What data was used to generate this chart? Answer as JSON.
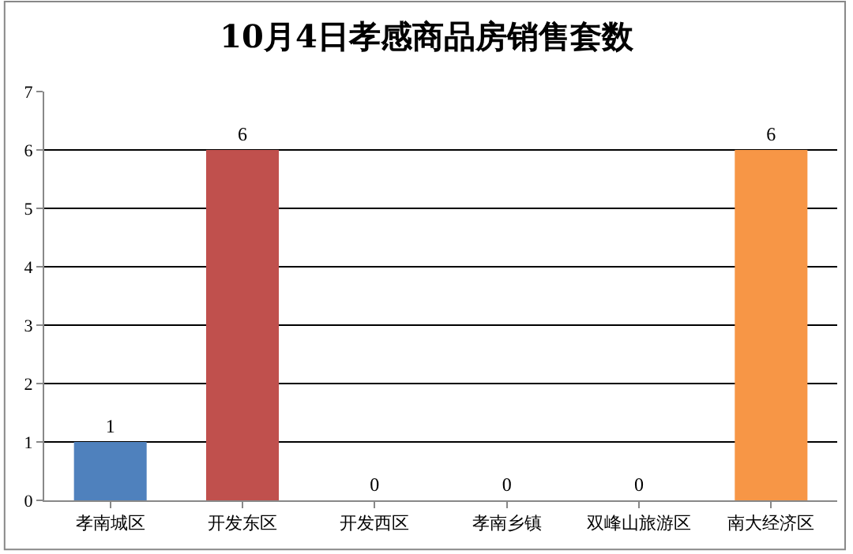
{
  "chart_data": {
    "type": "bar",
    "title": "10月4日孝感商品房销售套数",
    "categories": [
      "孝南城区",
      "开发东区",
      "开发西区",
      "孝南乡镇",
      "双峰山旅游区",
      "南大经济区"
    ],
    "values": [
      1,
      6,
      0,
      0,
      0,
      6
    ],
    "colors": [
      "#4f81bd",
      "#c0504d",
      "#9bbb59",
      "#8064a2",
      "#4bacc6",
      "#f79646"
    ],
    "ylim": [
      0,
      7
    ],
    "yticks": [
      0,
      1,
      2,
      3,
      4,
      5,
      6,
      7
    ],
    "grid": "y",
    "data_labels": true
  }
}
